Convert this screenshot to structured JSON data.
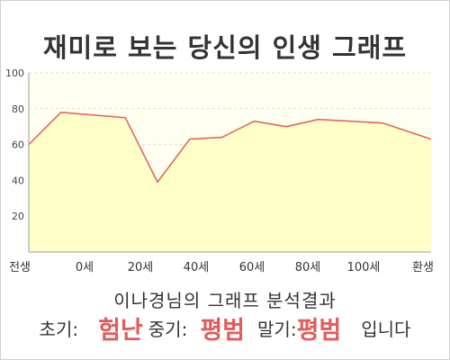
{
  "chart_data": {
    "type": "area",
    "title": "재미로 보는 당신의 인생 그래프",
    "x_tick_labels": [
      "전생",
      "0세",
      "20세",
      "40세",
      "60세",
      "80세",
      "100세",
      "환생"
    ],
    "x": [
      -10,
      0,
      20,
      30,
      40,
      50,
      60,
      70,
      80,
      90,
      100,
      115
    ],
    "values": [
      60,
      78,
      75,
      39,
      63,
      64,
      73,
      70,
      74,
      73,
      72,
      63
    ],
    "xlim": [
      -10,
      115
    ],
    "ylim": [
      0,
      100
    ],
    "y_ticks": [
      20,
      40,
      60,
      80,
      100
    ],
    "grid": true,
    "colors": {
      "line": "#e06666",
      "fill": "#ffffc8",
      "plot_bg": "#fffff0",
      "grid": "#dddddd"
    }
  },
  "result": {
    "title": "이나경님의 그래프 분석결과",
    "early_label": "초기:",
    "early_value": "험난",
    "middle_label": "중기:",
    "middle_value": "평범",
    "late_label": "말기:",
    "late_value": "평범",
    "suffix": "입니다"
  }
}
